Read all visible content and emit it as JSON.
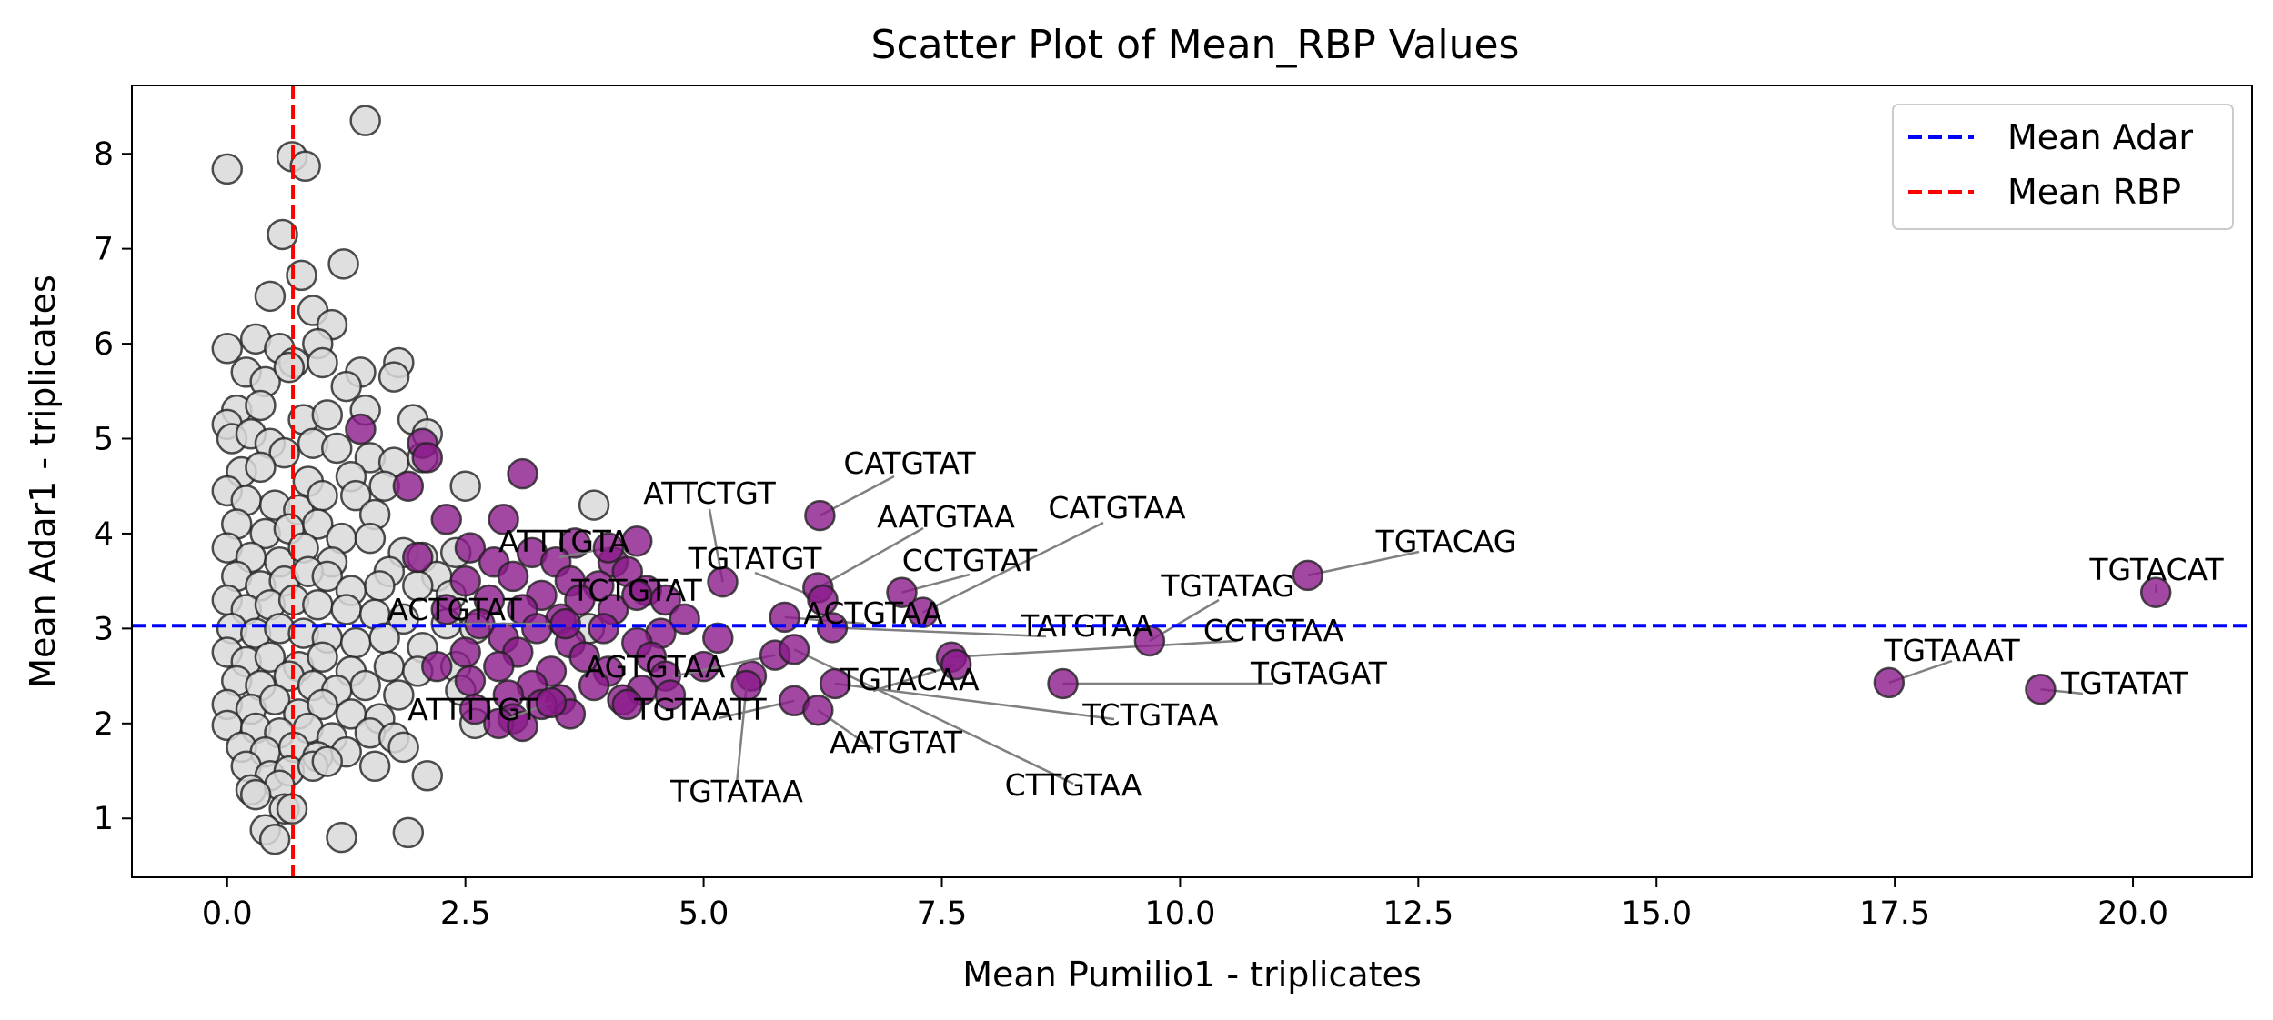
{
  "chart_data": {
    "type": "scatter",
    "title": "Scatter Plot of Mean_RBP Values",
    "xlabel": "Mean Pumilio1 - triplicates",
    "ylabel": "Mean Adar1 - triplicates",
    "xlim": [
      -1.0,
      21.25
    ],
    "ylim": [
      0.38,
      8.72
    ],
    "xticks": [
      0.0,
      2.5,
      5.0,
      7.5,
      10.0,
      12.5,
      15.0,
      17.5,
      20.0
    ],
    "xtick_labels": [
      "0.0",
      "2.5",
      "5.0",
      "7.5",
      "10.0",
      "12.5",
      "15.0",
      "17.5",
      "20.0"
    ],
    "yticks": [
      1,
      2,
      3,
      4,
      5,
      6,
      7,
      8
    ],
    "ytick_labels": [
      "1",
      "2",
      "3",
      "4",
      "5",
      "6",
      "7",
      "8"
    ],
    "grid": false,
    "legend_position": "top-right",
    "reference_lines": [
      {
        "name": "Mean Adar",
        "orientation": "horizontal",
        "value": 3.03,
        "color": "#0000ff",
        "style": "dashed"
      },
      {
        "name": "Mean RBP",
        "orientation": "vertical",
        "value": 0.69,
        "color": "#ff0000",
        "style": "dashed"
      }
    ],
    "colors": {
      "highlighted": "#8b1a8b",
      "background_points": "#d9d9d9",
      "edge": "#222222",
      "connector": "#808080"
    },
    "gray_points": [
      [
        0.0,
        7.84
      ],
      [
        0.68,
        7.97
      ],
      [
        0.82,
        7.87
      ],
      [
        1.45,
        8.35
      ],
      [
        0.58,
        7.15
      ],
      [
        0.78,
        6.72
      ],
      [
        1.22,
        6.84
      ],
      [
        0.45,
        6.5
      ],
      [
        0.9,
        6.35
      ],
      [
        1.1,
        6.2
      ],
      [
        0.0,
        5.95
      ],
      [
        0.3,
        6.05
      ],
      [
        0.55,
        5.95
      ],
      [
        0.95,
        6.0
      ],
      [
        0.7,
        5.8
      ],
      [
        0.2,
        5.7
      ],
      [
        0.4,
        5.6
      ],
      [
        0.65,
        5.75
      ],
      [
        1.0,
        5.8
      ],
      [
        1.8,
        5.8
      ],
      [
        1.75,
        5.65
      ],
      [
        1.4,
        5.7
      ],
      [
        1.25,
        5.55
      ],
      [
        0.1,
        5.3
      ],
      [
        0.35,
        5.35
      ],
      [
        0.8,
        5.2
      ],
      [
        1.05,
        5.25
      ],
      [
        1.45,
        5.3
      ],
      [
        1.95,
        5.2
      ],
      [
        2.1,
        5.05
      ],
      [
        0.0,
        5.15
      ],
      [
        0.05,
        5.0
      ],
      [
        0.25,
        5.05
      ],
      [
        0.45,
        4.95
      ],
      [
        0.6,
        4.85
      ],
      [
        0.9,
        4.95
      ],
      [
        1.15,
        4.9
      ],
      [
        1.5,
        4.8
      ],
      [
        1.75,
        4.75
      ],
      [
        2.05,
        4.8
      ],
      [
        0.15,
        4.65
      ],
      [
        0.35,
        4.7
      ],
      [
        0.85,
        4.55
      ],
      [
        1.3,
        4.6
      ],
      [
        1.65,
        4.5
      ],
      [
        2.5,
        4.5
      ],
      [
        3.85,
        4.3
      ],
      [
        0.0,
        4.45
      ],
      [
        0.2,
        4.35
      ],
      [
        0.5,
        4.3
      ],
      [
        0.75,
        4.25
      ],
      [
        1.0,
        4.4
      ],
      [
        1.35,
        4.4
      ],
      [
        1.55,
        4.2
      ],
      [
        0.1,
        4.1
      ],
      [
        0.4,
        4.0
      ],
      [
        0.65,
        4.05
      ],
      [
        0.95,
        4.1
      ],
      [
        1.2,
        3.95
      ],
      [
        1.5,
        3.95
      ],
      [
        1.85,
        3.8
      ],
      [
        2.05,
        3.75
      ],
      [
        2.4,
        3.8
      ],
      [
        0.0,
        3.85
      ],
      [
        0.25,
        3.75
      ],
      [
        0.55,
        3.7
      ],
      [
        0.8,
        3.85
      ],
      [
        1.1,
        3.7
      ],
      [
        1.7,
        3.6
      ],
      [
        2.2,
        3.55
      ],
      [
        0.1,
        3.55
      ],
      [
        0.35,
        3.45
      ],
      [
        0.6,
        3.5
      ],
      [
        0.85,
        3.6
      ],
      [
        1.05,
        3.55
      ],
      [
        1.3,
        3.4
      ],
      [
        1.6,
        3.45
      ],
      [
        2.0,
        3.45
      ],
      [
        2.35,
        3.35
      ],
      [
        0.0,
        3.3
      ],
      [
        0.2,
        3.2
      ],
      [
        0.45,
        3.25
      ],
      [
        0.7,
        3.3
      ],
      [
        0.95,
        3.25
      ],
      [
        1.25,
        3.2
      ],
      [
        1.55,
        3.15
      ],
      [
        1.85,
        3.1
      ],
      [
        2.3,
        3.05
      ],
      [
        2.6,
        3.0
      ],
      [
        3.8,
        3.0
      ],
      [
        0.05,
        3.0
      ],
      [
        0.3,
        2.95
      ],
      [
        0.55,
        3.0
      ],
      [
        0.8,
        2.95
      ],
      [
        1.05,
        2.9
      ],
      [
        1.35,
        2.85
      ],
      [
        1.65,
        2.9
      ],
      [
        2.05,
        2.8
      ],
      [
        0.0,
        2.75
      ],
      [
        0.2,
        2.65
      ],
      [
        0.45,
        2.7
      ],
      [
        0.75,
        2.6
      ],
      [
        1.0,
        2.7
      ],
      [
        1.3,
        2.55
      ],
      [
        1.7,
        2.6
      ],
      [
        2.0,
        2.55
      ],
      [
        2.4,
        2.6
      ],
      [
        0.1,
        2.45
      ],
      [
        0.35,
        2.4
      ],
      [
        0.65,
        2.5
      ],
      [
        0.9,
        2.4
      ],
      [
        1.15,
        2.35
      ],
      [
        1.45,
        2.4
      ],
      [
        1.8,
        2.3
      ],
      [
        2.45,
        2.35
      ],
      [
        0.0,
        2.2
      ],
      [
        0.25,
        2.15
      ],
      [
        0.5,
        2.25
      ],
      [
        0.75,
        2.1
      ],
      [
        1.0,
        2.2
      ],
      [
        1.3,
        2.1
      ],
      [
        1.6,
        2.05
      ],
      [
        0.0,
        1.98
      ],
      [
        0.3,
        1.95
      ],
      [
        0.55,
        1.9
      ],
      [
        0.85,
        1.95
      ],
      [
        1.1,
        1.85
      ],
      [
        1.5,
        1.9
      ],
      [
        1.75,
        1.85
      ],
      [
        2.6,
        2.0
      ],
      [
        0.15,
        1.75
      ],
      [
        0.4,
        1.7
      ],
      [
        0.7,
        1.75
      ],
      [
        0.95,
        1.65
      ],
      [
        1.25,
        1.7
      ],
      [
        1.85,
        1.75
      ],
      [
        0.2,
        1.55
      ],
      [
        0.45,
        1.45
      ],
      [
        0.65,
        1.5
      ],
      [
        0.9,
        1.55
      ],
      [
        1.05,
        1.6
      ],
      [
        1.55,
        1.55
      ],
      [
        2.1,
        1.45
      ],
      [
        0.25,
        1.3
      ],
      [
        0.55,
        1.35
      ],
      [
        0.3,
        1.25
      ],
      [
        0.6,
        1.1
      ],
      [
        0.4,
        0.88
      ],
      [
        0.5,
        0.78
      ],
      [
        0.68,
        1.1
      ],
      [
        1.2,
        0.8
      ],
      [
        1.9,
        0.85
      ]
    ],
    "purple_points": [
      [
        1.4,
        5.1
      ],
      [
        2.05,
        4.95
      ],
      [
        2.1,
        4.8
      ],
      [
        3.1,
        4.63
      ],
      [
        1.9,
        4.5
      ],
      [
        2.3,
        4.15
      ],
      [
        2.9,
        4.15
      ],
      [
        4.3,
        3.92
      ],
      [
        3.65,
        3.9
      ],
      [
        2.55,
        3.85
      ],
      [
        3.2,
        3.8
      ],
      [
        2.0,
        3.75
      ],
      [
        2.8,
        3.7
      ],
      [
        3.45,
        3.7
      ],
      [
        4.05,
        3.7
      ],
      [
        4.2,
        3.6
      ],
      [
        3.0,
        3.55
      ],
      [
        3.6,
        3.5
      ],
      [
        2.5,
        3.5
      ],
      [
        3.9,
        3.45
      ],
      [
        4.4,
        3.4
      ],
      [
        3.3,
        3.35
      ],
      [
        2.75,
        3.3
      ],
      [
        3.7,
        3.3
      ],
      [
        4.6,
        3.3
      ],
      [
        2.3,
        3.2
      ],
      [
        3.1,
        3.2
      ],
      [
        4.05,
        3.2
      ],
      [
        3.5,
        3.1
      ],
      [
        4.8,
        3.1
      ],
      [
        2.65,
        3.05
      ],
      [
        3.25,
        3.0
      ],
      [
        3.95,
        3.0
      ],
      [
        4.55,
        2.95
      ],
      [
        2.9,
        2.9
      ],
      [
        3.6,
        2.85
      ],
      [
        4.3,
        2.85
      ],
      [
        5.15,
        2.9
      ],
      [
        2.5,
        2.75
      ],
      [
        3.05,
        2.75
      ],
      [
        3.75,
        2.7
      ],
      [
        4.45,
        2.7
      ],
      [
        2.2,
        2.6
      ],
      [
        2.85,
        2.6
      ],
      [
        3.4,
        2.55
      ],
      [
        4.0,
        2.55
      ],
      [
        4.6,
        2.5
      ],
      [
        2.55,
        2.45
      ],
      [
        3.2,
        2.4
      ],
      [
        3.85,
        2.4
      ],
      [
        4.35,
        2.35
      ],
      [
        2.95,
        2.3
      ],
      [
        3.5,
        2.25
      ],
      [
        4.15,
        2.25
      ],
      [
        2.6,
        2.15
      ],
      [
        3.3,
        2.2
      ],
      [
        4.65,
        2.3
      ],
      [
        3.0,
        2.05
      ],
      [
        3.6,
        2.1
      ],
      [
        2.85,
        2.0
      ],
      [
        3.1,
        1.97
      ],
      [
        4.2,
        2.2
      ],
      [
        5.0,
        2.6
      ],
      [
        5.5,
        2.5
      ]
    ],
    "labeled_points": [
      {
        "label": "CATGTAT",
        "x": 6.22,
        "y": 4.19
      },
      {
        "label": "ATTCTGT",
        "x": 5.2,
        "y": 3.49
      },
      {
        "label": "AATGTAA",
        "x": 6.2,
        "y": 3.43
      },
      {
        "label": "CATGTAA",
        "x": 7.3,
        "y": 3.17
      },
      {
        "label": "TGTACAG",
        "x": 11.34,
        "y": 3.56
      },
      {
        "label": "TGTATGT",
        "x": 6.25,
        "y": 3.3
      },
      {
        "label": "CCTGTAT",
        "x": 7.08,
        "y": 3.38
      },
      {
        "label": "ATTTGTA",
        "x": 4.0,
        "y": 3.85
      },
      {
        "label": "TGTATAG",
        "x": 9.68,
        "y": 2.87
      },
      {
        "label": "TGTACAT",
        "x": 20.24,
        "y": 3.38
      },
      {
        "label": "ACTGTAT",
        "x": 3.55,
        "y": 3.05
      },
      {
        "label": "TCTGTAT",
        "x": 4.3,
        "y": 3.35
      },
      {
        "label": "ACTGTAA",
        "x": 5.85,
        "y": 3.12
      },
      {
        "label": "TATGTAA",
        "x": 6.35,
        "y": 3.01
      },
      {
        "label": "CCTGTAA",
        "x": 7.6,
        "y": 2.7
      },
      {
        "label": "AGTGTAA",
        "x": 5.75,
        "y": 2.72
      },
      {
        "label": "TGTACAA",
        "x": 7.65,
        "y": 2.62
      },
      {
        "label": "TGTAGAT",
        "x": 8.77,
        "y": 2.42
      },
      {
        "label": "TGTAAAT",
        "x": 17.44,
        "y": 2.43
      },
      {
        "label": "TGTATAT",
        "x": 19.03,
        "y": 2.36
      },
      {
        "label": "ATTTTGT",
        "x": 3.4,
        "y": 2.22
      },
      {
        "label": "TGTAATT",
        "x": 5.95,
        "y": 2.24
      },
      {
        "label": "TCTGTAA",
        "x": 6.38,
        "y": 2.42
      },
      {
        "label": "AATGTAT",
        "x": 6.2,
        "y": 2.14
      },
      {
        "label": "TGTATAA",
        "x": 5.45,
        "y": 2.4
      },
      {
        "label": "CTTGTAA",
        "x": 5.95,
        "y": 2.78
      }
    ],
    "legend": [
      {
        "name": "Mean Adar",
        "color": "#0000ff"
      },
      {
        "name": "Mean RBP",
        "color": "#ff0000"
      }
    ]
  }
}
